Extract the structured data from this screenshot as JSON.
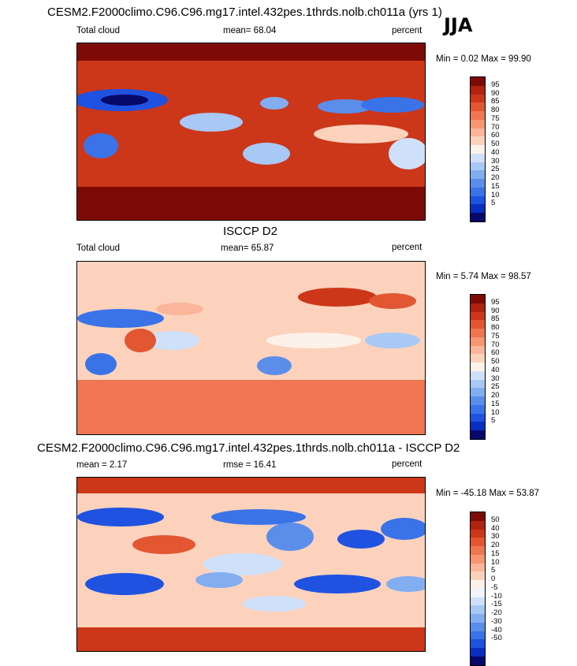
{
  "season": "JJA",
  "colors": {
    "abs": [
      "#08086b",
      "#0a2fc0",
      "#1f52e0",
      "#3a73e8",
      "#5a8eea",
      "#82aef0",
      "#a8c8f5",
      "#cfe0fa",
      "#fdf2ea",
      "#fcd2bd",
      "#fab59a",
      "#f79670",
      "#ef7650",
      "#e25632",
      "#cc3719",
      "#b0230e",
      "#7d0a06"
    ],
    "diff": [
      "#08086b",
      "#0a2fc0",
      "#1f52e0",
      "#3a73e8",
      "#5a8eea",
      "#82aef0",
      "#a8c8f5",
      "#cfe0fa",
      "#f0f4fc",
      "#fdf2ea",
      "#fcd2bd",
      "#fab59a",
      "#f79670",
      "#ef7650",
      "#e25632",
      "#cc3719",
      "#b0230e",
      "#7d0a06"
    ]
  },
  "chart_data": [
    {
      "type": "heatmap",
      "title": "CESM2.F2000climo.C96.C96.mg17.intel.432pes.1thrds.nolb.ch011a (yrs 1)",
      "left_label": "Total cloud",
      "stat_label": "mean=  68.04",
      "units": "percent",
      "minmax_label": "Min =   0.02 Max =  99.90",
      "mean": 68.04,
      "min": 0.02,
      "max": 99.9,
      "colorbar_levels": [
        "95",
        "90",
        "85",
        "80",
        "75",
        "70",
        "60",
        "50",
        "40",
        "30",
        "25",
        "20",
        "15",
        "10",
        "5"
      ]
    },
    {
      "type": "heatmap",
      "title": "ISCCP D2",
      "left_label": "Total cloud",
      "stat_label": "mean=  65.87",
      "units": "percent",
      "minmax_label": "Min =   5.74 Max =  98.57",
      "mean": 65.87,
      "min": 5.74,
      "max": 98.57,
      "colorbar_levels": [
        "95",
        "90",
        "85",
        "80",
        "75",
        "70",
        "60",
        "50",
        "40",
        "30",
        "25",
        "20",
        "15",
        "10",
        "5"
      ]
    },
    {
      "type": "heatmap",
      "title": "CESM2.F2000climo.C96.C96.mg17.intel.432pes.1thrds.nolb.ch011a - ISCCP D2",
      "left_label": "mean =   2.17",
      "stat_label": "rmse =  16.41",
      "units": "percent",
      "minmax_label": "Min = -45.18 Max =  53.87",
      "mean": 2.17,
      "rmse": 16.41,
      "min": -45.18,
      "max": 53.87,
      "colorbar_levels": [
        "50",
        "40",
        "30",
        "20",
        "15",
        "10",
        "5",
        "0",
        "-5",
        "-10",
        "-15",
        "-20",
        "-30",
        "-40",
        "-50"
      ]
    }
  ]
}
